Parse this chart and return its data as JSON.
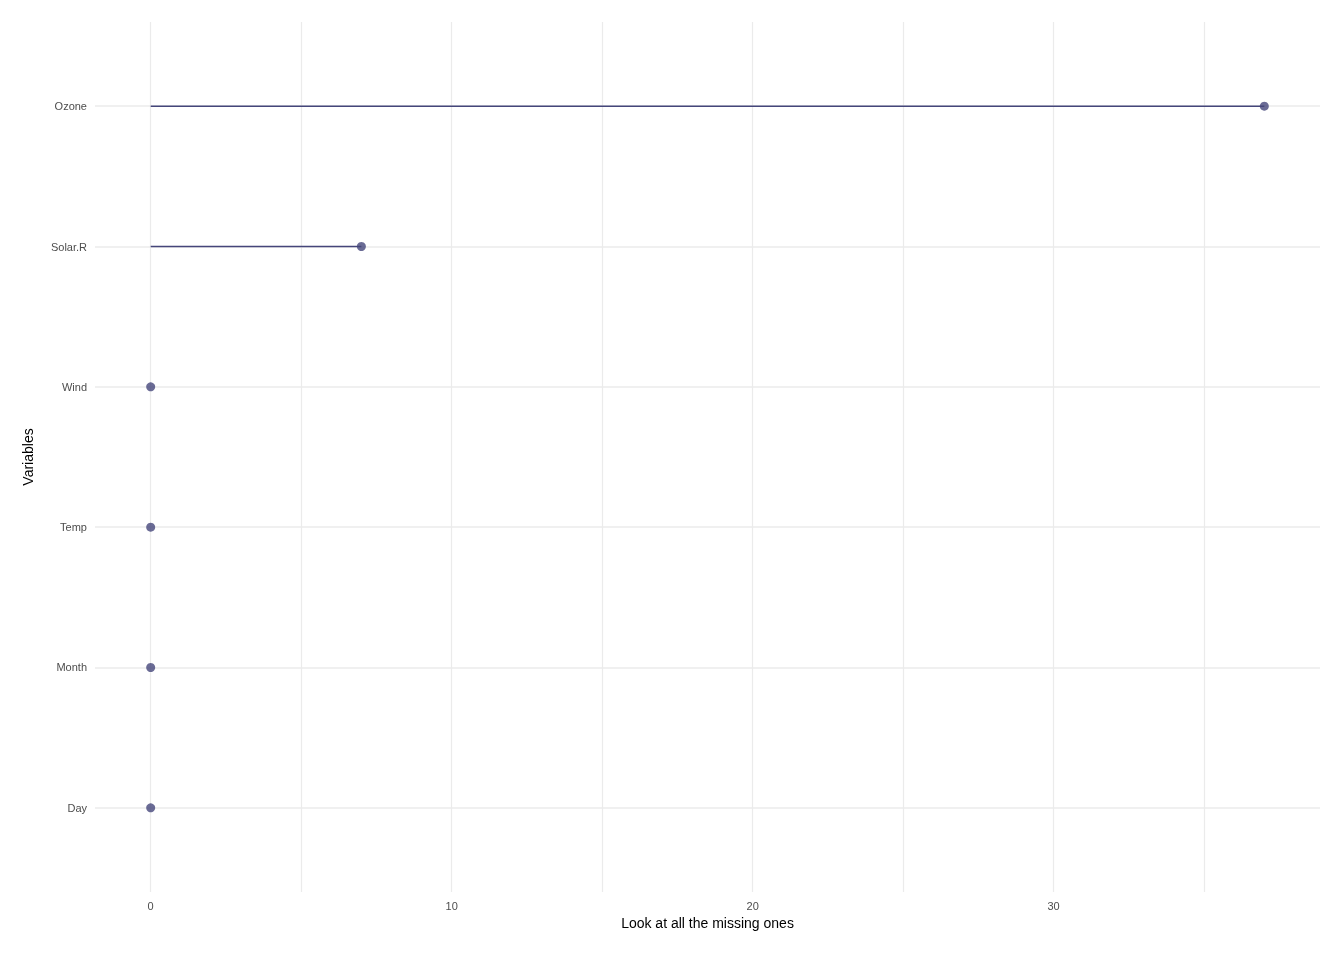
{
  "chart_data": {
    "type": "lollipop",
    "orientation": "horizontal",
    "xlabel": "Look at all the missing ones",
    "ylabel": "Variables",
    "categories": [
      "Ozone",
      "Solar.R",
      "Wind",
      "Temp",
      "Month",
      "Day"
    ],
    "values": [
      37,
      7,
      0,
      0,
      0,
      0
    ],
    "color": "#45467a",
    "xlim": [
      -1.85,
      38.85
    ],
    "xticks": [
      0,
      {
        "value": 5,
        "label": null
      },
      10,
      {
        "value": 15,
        "label": null
      },
      20,
      {
        "value": 25,
        "label": null
      },
      30,
      {
        "value": 35,
        "label": null
      }
    ],
    "grid": true,
    "marker": "circle"
  }
}
